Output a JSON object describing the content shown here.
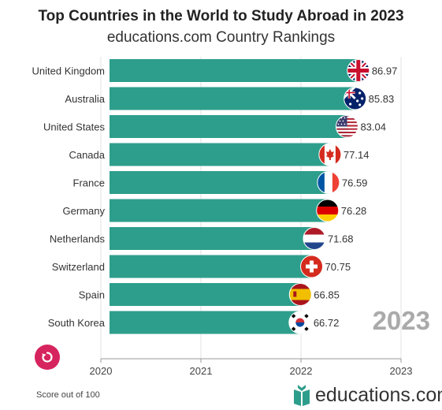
{
  "header": {
    "title": "Top Countries in the World to Study Abroad in 2023",
    "subtitle": "educations.com Country Rankings"
  },
  "chart_data": {
    "type": "bar",
    "orientation": "horizontal",
    "categories": [
      "United Kingdom",
      "Australia",
      "United States",
      "Canada",
      "France",
      "Germany",
      "Netherlands",
      "Switzerland",
      "Spain",
      "South Korea"
    ],
    "values": [
      86.97,
      85.83,
      83.04,
      77.14,
      76.59,
      76.28,
      71.68,
      70.75,
      66.85,
      66.72
    ],
    "flags": [
      "uk-flag",
      "australia-flag",
      "usa-flag",
      "canada-flag",
      "france-flag",
      "germany-flag",
      "netherlands-flag",
      "switzerland-flag",
      "spain-flag",
      "south-korea-flag"
    ],
    "x_ticks": [
      "2020",
      "2021",
      "2022",
      "2023"
    ],
    "current_year": "2023",
    "bar_color": "#2e9e8c",
    "grid": true
  },
  "controls": {
    "replay_icon": "replay-icon"
  },
  "footer": {
    "note": "Score out of 100",
    "brand": "educations.com",
    "brand_icon": "book-logo-icon",
    "brand_color": "#2e9e8c"
  }
}
